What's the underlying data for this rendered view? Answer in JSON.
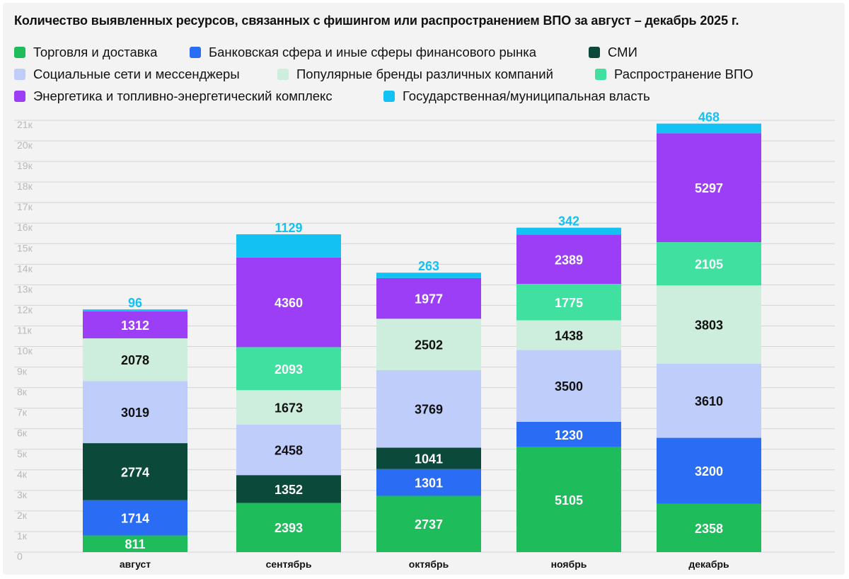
{
  "chart_data": {
    "type": "bar",
    "stacked": true,
    "title": "Количество выявленных ресурсов, связанных с фишингом или распространением ВПО за август – декабрь 2025 г.",
    "categories": [
      "август",
      "сентябрь",
      "октябрь",
      "ноябрь",
      "декабрь"
    ],
    "ylim": [
      0,
      21000
    ],
    "y_ticks": [
      "0",
      "1к",
      "2к",
      "3к",
      "4к",
      "5к",
      "6к",
      "7к",
      "8к",
      "9к",
      "10к",
      "11к",
      "12к",
      "13к",
      "14к",
      "15к",
      "16к",
      "17к",
      "18к",
      "19к",
      "20к",
      "21к"
    ],
    "grid": true,
    "legend_position": "top",
    "series": [
      {
        "name": "Торговля и доставка",
        "color": "#1ebc5a",
        "label_color": "#ffffff",
        "values": [
          811,
          2393,
          2737,
          5105,
          2358
        ]
      },
      {
        "name": "Банковская сфера и иные сферы финансового рынка",
        "color": "#2a6df4",
        "label_color": "#ffffff",
        "values": [
          1714,
          0,
          1301,
          1230,
          3200
        ]
      },
      {
        "name": "СМИ",
        "color": "#0b4a3a",
        "label_color": "#ffffff",
        "values": [
          2774,
          1352,
          1041,
          0,
          0
        ]
      },
      {
        "name": "Социальные сети и мессенджеры",
        "color": "#bfcdfb",
        "label_color": "#111111",
        "values": [
          3019,
          2458,
          3769,
          3500,
          3610
        ]
      },
      {
        "name": "Популярные бренды различных компаний",
        "color": "#cdeedd",
        "label_color": "#111111",
        "values": [
          2078,
          1673,
          2502,
          1438,
          3803
        ]
      },
      {
        "name": "Распространение ВПО",
        "color": "#3fe0a0",
        "label_color": "#ffffff",
        "values": [
          0,
          2093,
          0,
          1775,
          2105
        ]
      },
      {
        "name": "Энергетика и топливно-энергетический комплекс",
        "color": "#9c3ef5",
        "label_color": "#ffffff",
        "values": [
          1312,
          4360,
          1977,
          2389,
          5297
        ]
      },
      {
        "name": "Государственная/муниципальная власть",
        "color": "#13c2f2",
        "label_color": "#ffffff",
        "values": [
          96,
          1129,
          263,
          342,
          468
        ]
      }
    ]
  }
}
